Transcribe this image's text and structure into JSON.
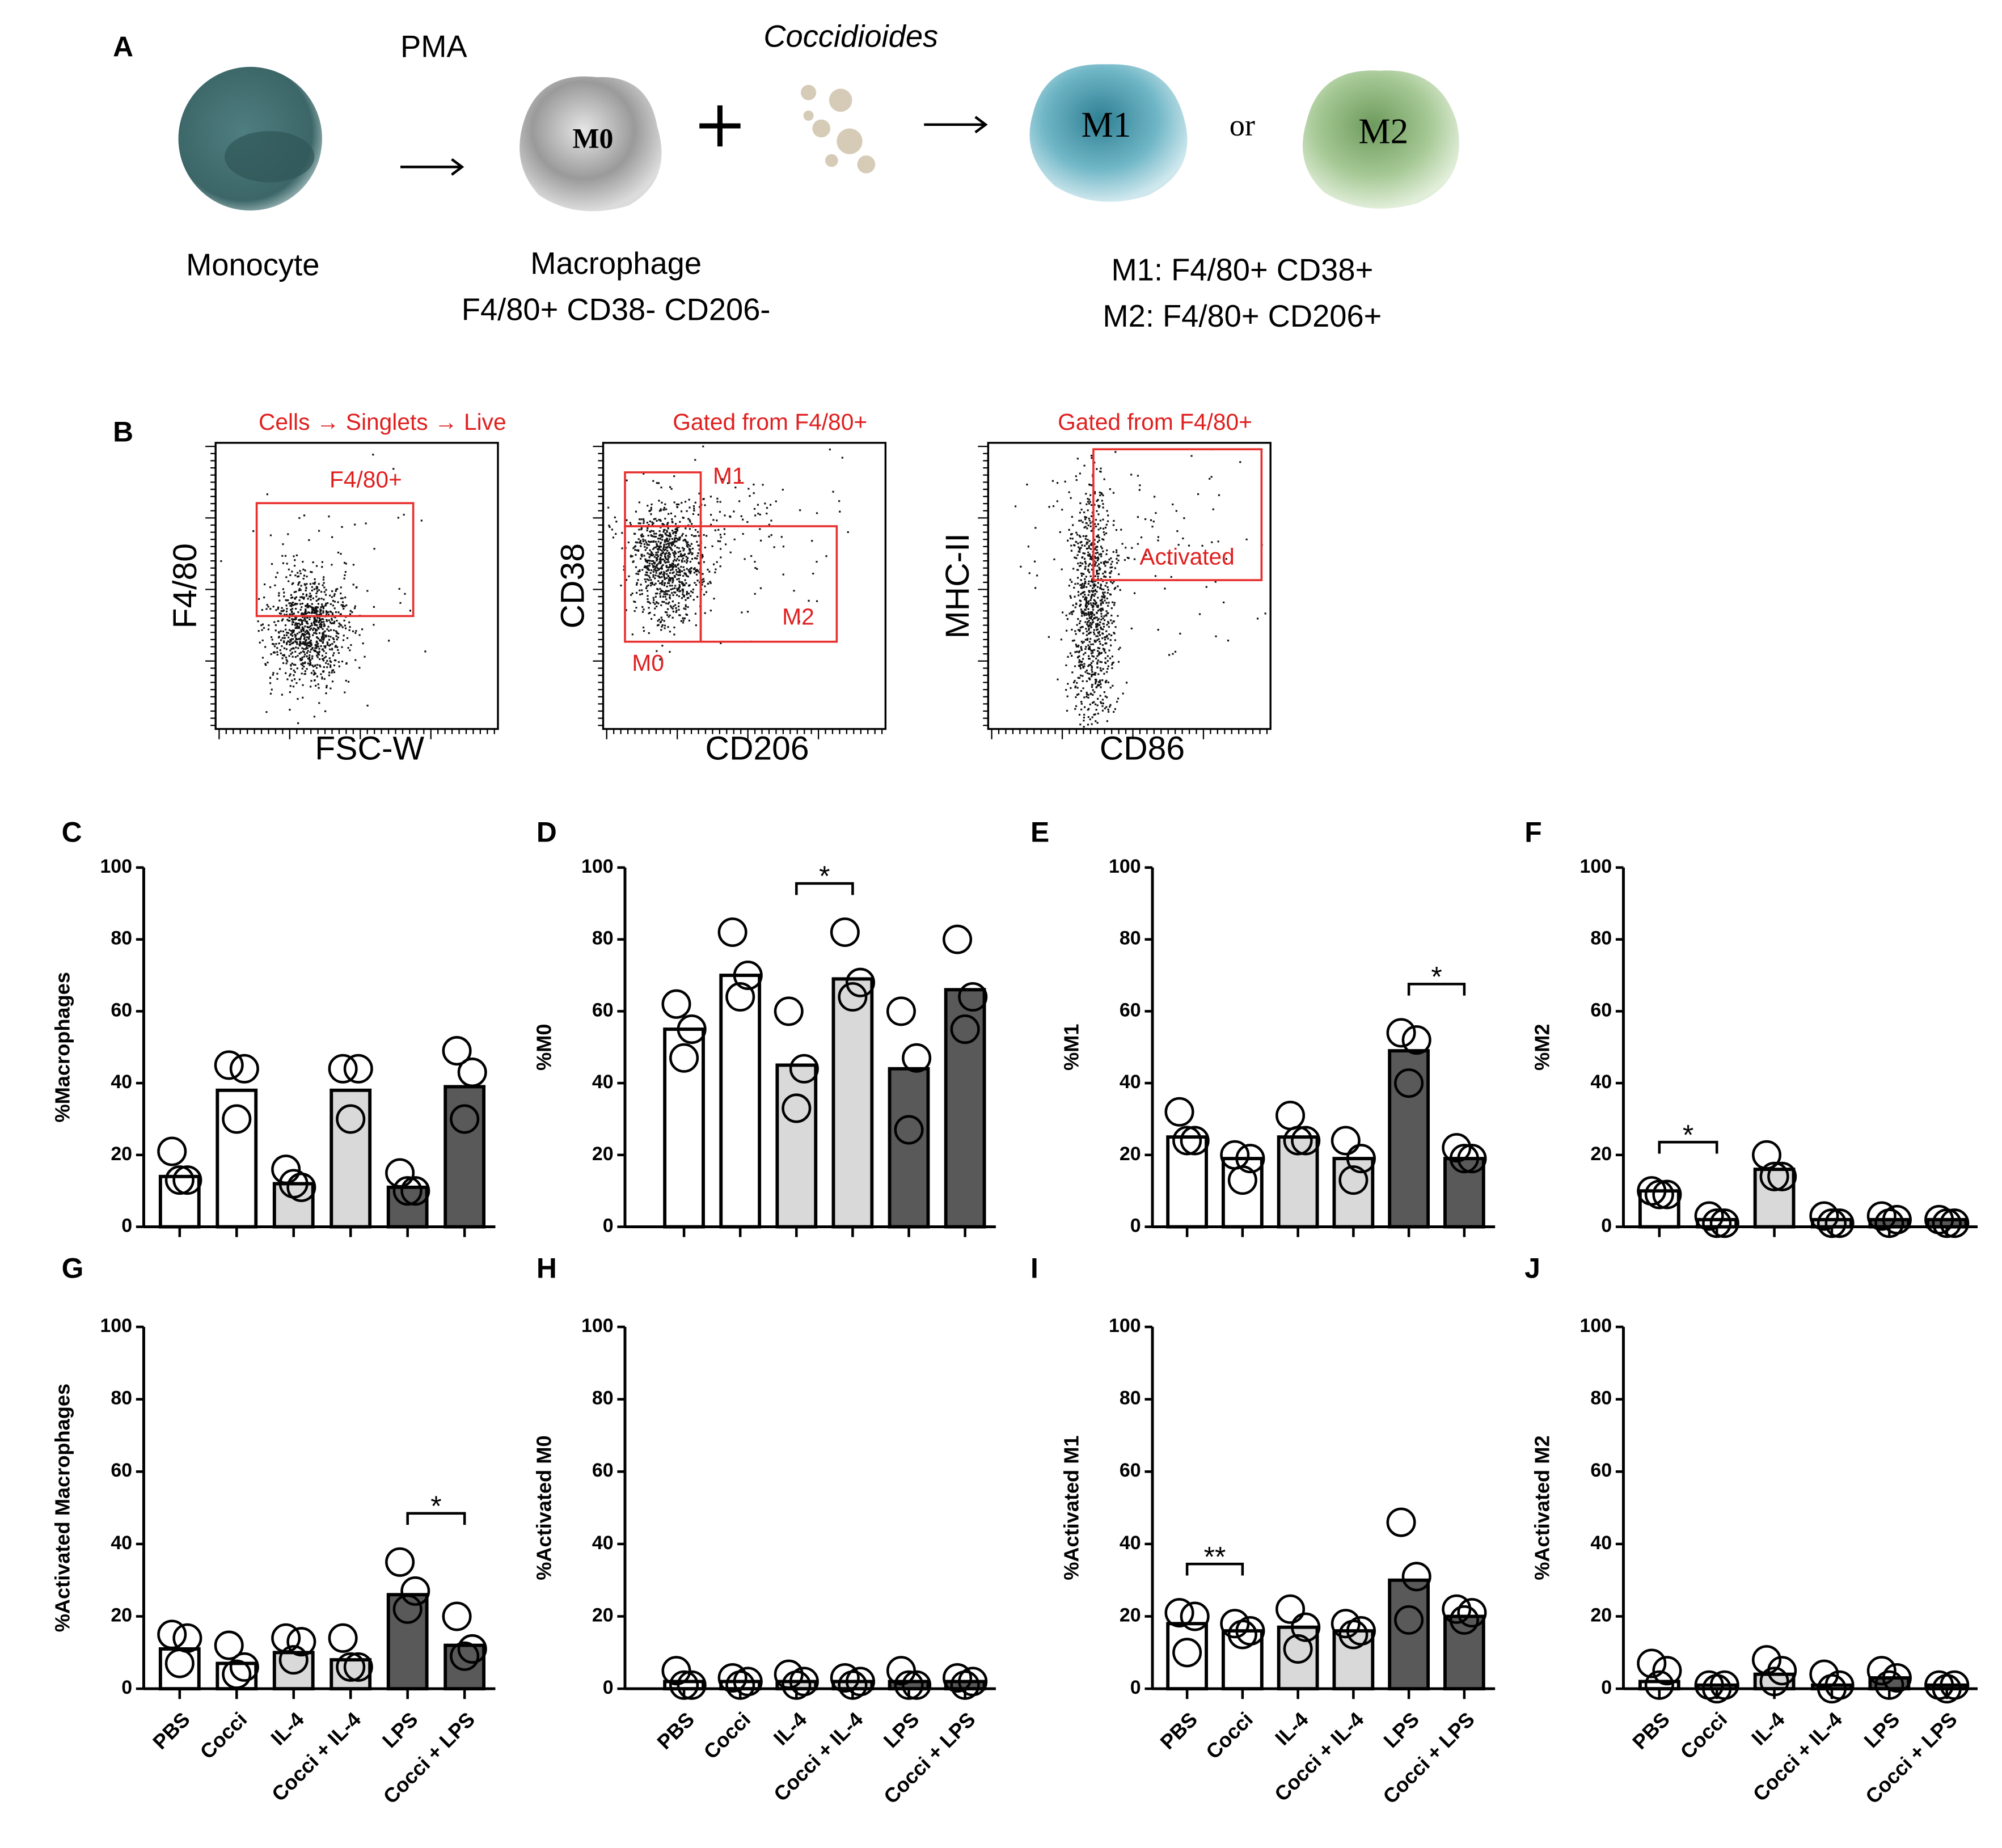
{
  "panel_a": {
    "label": "A",
    "pma": "PMA",
    "coccidioides": "Coccidioides",
    "monocyte": "Monocyte",
    "macrophage": "Macrophage",
    "macrophage_markers": "F4/80+ CD38- CD206-",
    "m0": "M0",
    "m1": "M1",
    "or": "or",
    "m2": "M2",
    "m1_markers": "M1: F4/80+ CD38+",
    "m2_markers": "M2: F4/80+ CD206+"
  },
  "panel_b": {
    "label": "B",
    "plots": [
      {
        "header": "Cells → Singlets → Live",
        "x_label": "FSC-W",
        "y_label": "F4/80",
        "gates": [
          "F4/80+"
        ]
      },
      {
        "header": "Gated from F4/80+",
        "x_label": "CD206",
        "y_label": "CD38",
        "gates": [
          "M1",
          "M2",
          "M0"
        ]
      },
      {
        "header": "Gated from F4/80+",
        "x_label": "CD86",
        "y_label": "MHC-II",
        "gates": [
          "Activated"
        ]
      }
    ]
  },
  "chart_data": [
    {
      "type": "bar",
      "panel": "C",
      "y_label": "%Macrophages",
      "categories": [
        null,
        null,
        null,
        null,
        null,
        null
      ],
      "values": [
        14,
        38,
        12,
        38,
        11,
        39
      ],
      "points": [
        [
          21,
          13,
          13
        ],
        [
          45,
          44,
          30
        ],
        [
          16,
          11,
          12
        ],
        [
          44,
          44,
          30
        ],
        [
          15,
          10,
          10
        ],
        [
          49,
          43,
          30
        ]
      ],
      "colors": [
        "#ffffff",
        "#ffffff",
        "#d9d9d9",
        "#d9d9d9",
        "#595959",
        "#595959"
      ],
      "ylim": [
        0,
        100
      ],
      "yticks": [
        0,
        20,
        40,
        60,
        80,
        100
      ],
      "annotations": []
    },
    {
      "type": "bar",
      "panel": "D",
      "y_label": "%M0",
      "categories": [
        null,
        null,
        null,
        null,
        null,
        null
      ],
      "values": [
        55,
        70,
        45,
        69,
        44,
        66
      ],
      "points": [
        [
          62,
          55,
          47
        ],
        [
          82,
          70,
          64
        ],
        [
          60,
          44,
          33
        ],
        [
          82,
          68,
          64
        ],
        [
          60,
          47,
          27
        ],
        [
          80,
          64,
          55
        ]
      ],
      "colors": [
        "#ffffff",
        "#ffffff",
        "#d9d9d9",
        "#d9d9d9",
        "#595959",
        "#595959"
      ],
      "ylim": [
        0,
        100
      ],
      "yticks": [
        0,
        20,
        40,
        60,
        80,
        100
      ],
      "annotations": [
        {
          "text": "*",
          "between": [
            2,
            3
          ]
        }
      ]
    },
    {
      "type": "bar",
      "panel": "E",
      "y_label": "%M1",
      "categories": [
        null,
        null,
        null,
        null,
        null,
        null
      ],
      "values": [
        25,
        19,
        25,
        19,
        49,
        19
      ],
      "points": [
        [
          32,
          24,
          24
        ],
        [
          20,
          19,
          13
        ],
        [
          31,
          24,
          24
        ],
        [
          24,
          19,
          13
        ],
        [
          54,
          52,
          40
        ],
        [
          22,
          19,
          19
        ]
      ],
      "colors": [
        "#ffffff",
        "#ffffff",
        "#d9d9d9",
        "#d9d9d9",
        "#595959",
        "#595959"
      ],
      "ylim": [
        0,
        100
      ],
      "yticks": [
        0,
        20,
        40,
        60,
        80,
        100
      ],
      "annotations": [
        {
          "text": "*",
          "between": [
            4,
            5
          ]
        }
      ]
    },
    {
      "type": "bar",
      "panel": "F",
      "y_label": "%M2",
      "categories": [
        null,
        null,
        null,
        null,
        null,
        null
      ],
      "values": [
        10,
        2,
        16,
        2,
        2,
        2
      ],
      "points": [
        [
          10,
          9,
          9
        ],
        [
          3,
          1,
          1
        ],
        [
          20,
          14,
          14
        ],
        [
          3,
          1,
          1
        ],
        [
          3,
          2,
          1
        ],
        [
          2,
          1,
          1
        ]
      ],
      "colors": [
        "#ffffff",
        "#ffffff",
        "#d9d9d9",
        "#d9d9d9",
        "#595959",
        "#595959"
      ],
      "ylim": [
        0,
        100
      ],
      "yticks": [
        0,
        20,
        40,
        60,
        80,
        100
      ],
      "annotations": [
        {
          "text": "*",
          "between": [
            0,
            1
          ]
        }
      ]
    },
    {
      "type": "bar",
      "panel": "G",
      "y_label": "%Activated Macrophages",
      "categories": [
        "PBS",
        "Cocci",
        "IL-4",
        "Cocci + IL-4",
        "LPS",
        "Cocci + LPS"
      ],
      "values": [
        11,
        7,
        10,
        8,
        26,
        12
      ],
      "points": [
        [
          15,
          14,
          7
        ],
        [
          12,
          6,
          4
        ],
        [
          14,
          13,
          8
        ],
        [
          14,
          6,
          6
        ],
        [
          35,
          27,
          22
        ],
        [
          20,
          11,
          9
        ]
      ],
      "colors": [
        "#ffffff",
        "#ffffff",
        "#d9d9d9",
        "#d9d9d9",
        "#595959",
        "#595959"
      ],
      "ylim": [
        0,
        100
      ],
      "yticks": [
        0,
        20,
        40,
        60,
        80,
        100
      ],
      "annotations": [
        {
          "text": "*",
          "between": [
            4,
            5
          ]
        }
      ]
    },
    {
      "type": "bar",
      "panel": "H",
      "y_label": "%Activated M0",
      "categories": [
        "PBS",
        "Cocci",
        "IL-4",
        "Cocci + IL-4",
        "LPS",
        "Cocci + LPS"
      ],
      "values": [
        2,
        2,
        2,
        2,
        2,
        2
      ],
      "points": [
        [
          5,
          1,
          1
        ],
        [
          3,
          2,
          1
        ],
        [
          4,
          2,
          1
        ],
        [
          3,
          2,
          1
        ],
        [
          5,
          1,
          1
        ],
        [
          3,
          2,
          1
        ]
      ],
      "colors": [
        "#ffffff",
        "#ffffff",
        "#d9d9d9",
        "#d9d9d9",
        "#595959",
        "#595959"
      ],
      "ylim": [
        0,
        100
      ],
      "yticks": [
        0,
        20,
        40,
        60,
        80,
        100
      ],
      "annotations": []
    },
    {
      "type": "bar",
      "panel": "I",
      "y_label": "%Activated M1",
      "categories": [
        "PBS",
        "Cocci",
        "IL-4",
        "Cocci + IL-4",
        "LPS",
        "Cocci + LPS"
      ],
      "values": [
        18,
        16,
        17,
        16,
        30,
        20
      ],
      "points": [
        [
          21,
          20,
          10
        ],
        [
          18,
          16,
          15
        ],
        [
          22,
          17,
          11
        ],
        [
          18,
          16,
          15
        ],
        [
          46,
          31,
          19
        ],
        [
          22,
          21,
          19
        ]
      ],
      "colors": [
        "#ffffff",
        "#ffffff",
        "#d9d9d9",
        "#d9d9d9",
        "#595959",
        "#595959"
      ],
      "ylim": [
        0,
        100
      ],
      "yticks": [
        0,
        20,
        40,
        60,
        80,
        100
      ],
      "annotations": [
        {
          "text": "**",
          "between": [
            0,
            1
          ]
        }
      ]
    },
    {
      "type": "bar",
      "panel": "J",
      "y_label": "%Activated M2",
      "categories": [
        "PBS",
        "Cocci",
        "IL-4",
        "Cocci + IL-4",
        "LPS",
        "Cocci + LPS"
      ],
      "values": [
        2,
        1,
        4,
        1,
        3,
        1
      ],
      "points": [
        [
          7,
          5,
          1
        ],
        [
          1,
          1,
          0
        ],
        [
          8,
          5,
          2
        ],
        [
          4,
          1,
          0
        ],
        [
          5,
          3,
          1
        ],
        [
          1,
          1,
          0
        ]
      ],
      "colors": [
        "#ffffff",
        "#ffffff",
        "#d9d9d9",
        "#d9d9d9",
        "#595959",
        "#595959"
      ],
      "ylim": [
        0,
        100
      ],
      "yticks": [
        0,
        20,
        40,
        60,
        80,
        100
      ],
      "annotations": []
    }
  ]
}
